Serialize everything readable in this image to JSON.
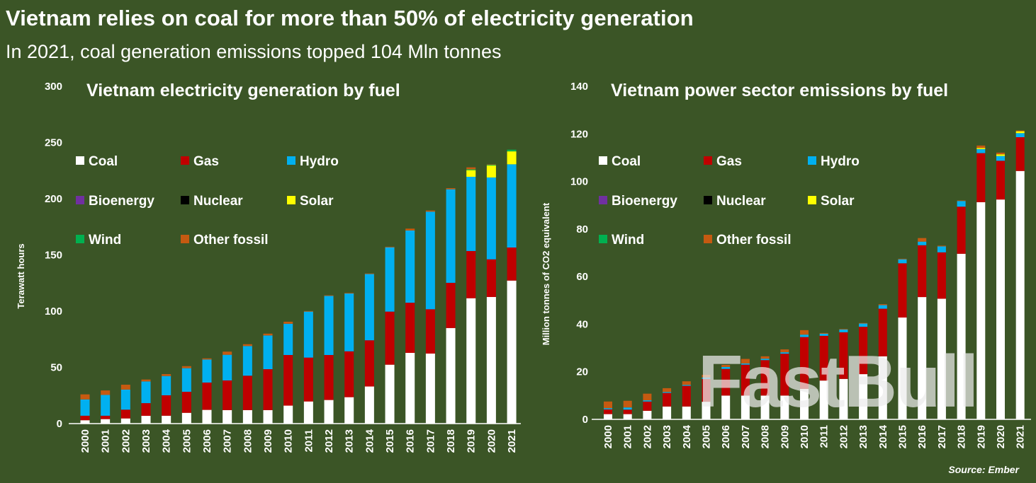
{
  "title": "Vietnam relies on coal for more than 50% of electricity generation",
  "subtitle": "In 2021, coal generation emissions topped 104 Mln tonnes",
  "source": "Source: Ember",
  "watermark": "FastBull",
  "colors": {
    "background": "#3b5526",
    "Coal": "#ffffff",
    "Gas": "#c00000",
    "Hydro": "#00b0f0",
    "Bioenergy": "#7030a0",
    "Nuclear": "#000000",
    "Solar": "#ffff00",
    "Wind": "#00b050",
    "Other fossil": "#c55a11"
  },
  "chart_data": [
    {
      "type": "bar",
      "stacked": true,
      "title": "Vietnam electricity generation by fuel",
      "xlabel": "",
      "ylabel": "Terawatt hours",
      "ylim": [
        0,
        300
      ],
      "yticks": [
        "0",
        "50",
        "100",
        "150",
        "200",
        "250",
        "300"
      ],
      "grid": false,
      "legend_placement": "top-left",
      "legend": [
        "Coal",
        "Gas",
        "Hydro",
        "Bioenergy",
        "Nuclear",
        "Solar",
        "Wind",
        "Other fossil"
      ],
      "categories": [
        "2000",
        "2001",
        "2002",
        "2003",
        "2004",
        "2005",
        "2006",
        "2007",
        "2008",
        "2009",
        "2010",
        "2011",
        "2012",
        "2013",
        "2014",
        "2015",
        "2016",
        "2017",
        "2018",
        "2019",
        "2020",
        "2021"
      ],
      "series": [
        {
          "name": "Coal",
          "values": [
            3,
            4,
            4.6,
            6.9,
            7,
            9.6,
            12.2,
            12,
            12,
            12,
            16,
            19.7,
            21,
            23.5,
            33,
            52.4,
            62.9,
            62.3,
            85,
            111.5,
            112.6,
            127.2
          ]
        },
        {
          "name": "Gas",
          "values": [
            4,
            3,
            7.8,
            11.3,
            18.2,
            18.7,
            24.3,
            26.4,
            30.6,
            36.4,
            45,
            39,
            40,
            40.8,
            41.1,
            47.2,
            44.6,
            39.4,
            40.2,
            42,
            33.5,
            29.4
          ]
        },
        {
          "name": "Hydro",
          "values": [
            14.5,
            18.5,
            17.8,
            19.3,
            17.1,
            21,
            20.5,
            22.8,
            26.4,
            30,
            27.8,
            40.9,
            52.6,
            51.4,
            58.9,
            57.2,
            64.2,
            86.8,
            83.2,
            66,
            72.8,
            74
          ]
        },
        {
          "name": "Bioenergy",
          "values": [
            0,
            0,
            0,
            0,
            0,
            0,
            0,
            0,
            0,
            0,
            0,
            0,
            0,
            0,
            0,
            0,
            0,
            0,
            0,
            0,
            0,
            0
          ]
        },
        {
          "name": "Nuclear",
          "values": [
            0,
            0,
            0,
            0,
            0,
            0,
            0,
            0,
            0,
            0,
            0,
            0,
            0,
            0,
            0,
            0,
            0,
            0,
            0,
            0,
            0,
            0
          ]
        },
        {
          "name": "Solar",
          "values": [
            0,
            0,
            0,
            0,
            0,
            0,
            0,
            0,
            0,
            0,
            0,
            0,
            0,
            0,
            0,
            0,
            0,
            0,
            0,
            5.9,
            10.7,
            11.5
          ]
        },
        {
          "name": "Wind",
          "values": [
            0,
            0,
            0,
            0,
            0,
            0,
            0,
            0,
            0,
            0,
            0,
            0,
            0,
            0,
            0,
            0,
            0,
            0,
            0,
            0.7,
            0.8,
            1.5
          ]
        },
        {
          "name": "Other fossil",
          "values": [
            4.5,
            4,
            4.4,
            1.7,
            1.7,
            1.8,
            1,
            2.8,
            1.6,
            1.6,
            1.8,
            0.5,
            0.5,
            0.5,
            0.5,
            0.5,
            1.7,
            1,
            1,
            1.8,
            0.4,
            0
          ]
        }
      ]
    },
    {
      "type": "bar",
      "stacked": true,
      "title": "Vietnam power sector emissions by fuel",
      "xlabel": "",
      "ylabel": "Million tonnes of CO2 equivalent",
      "ylim": [
        0,
        140
      ],
      "yticks": [
        "0",
        "20",
        "40",
        "60",
        "80",
        "100",
        "120",
        "140"
      ],
      "grid": false,
      "legend_placement": "top-left",
      "legend": [
        "Coal",
        "Gas",
        "Hydro",
        "Bioenergy",
        "Nuclear",
        "Solar",
        "Wind",
        "Other fossil"
      ],
      "categories": [
        "2000",
        "2001",
        "2002",
        "2003",
        "2004",
        "2005",
        "2006",
        "2007",
        "2008",
        "2009",
        "2010",
        "2011",
        "2012",
        "2013",
        "2014",
        "2015",
        "2016",
        "2017",
        "2018",
        "2019",
        "2020",
        "2021"
      ],
      "series": [
        {
          "name": "Coal",
          "values": [
            2.2,
            2.2,
            3.6,
            5.4,
            5.4,
            7.4,
            10,
            10,
            10,
            10,
            12.8,
            16.3,
            17,
            19,
            26.5,
            42.8,
            51.4,
            50.7,
            69.6,
            91.3,
            92.4,
            104.4
          ]
        },
        {
          "name": "Gas",
          "values": [
            2,
            1.9,
            3.9,
            5.7,
            8.7,
            9.6,
            11.2,
            13,
            14.9,
            17.6,
            21.8,
            18.8,
            19.6,
            19.9,
            20,
            22.8,
            21.8,
            19.5,
            19.8,
            20.6,
            16.3,
            14.2
          ]
        },
        {
          "name": "Hydro",
          "values": [
            0.5,
            0.9,
            0.5,
            0.4,
            0.4,
            0.6,
            0.8,
            0.5,
            0.6,
            0.6,
            1,
            0.9,
            1.2,
            1.4,
            1.5,
            1.7,
            1.5,
            2.5,
            2.4,
            1.7,
            2,
            1.7
          ]
        },
        {
          "name": "Bioenergy",
          "values": [
            0,
            0,
            0,
            0,
            0,
            0,
            0,
            0,
            0,
            0,
            0,
            0,
            0,
            0,
            0,
            0,
            0,
            0,
            0,
            0,
            0,
            0
          ]
        },
        {
          "name": "Nuclear",
          "values": [
            0,
            0,
            0,
            0,
            0,
            0,
            0,
            0,
            0,
            0,
            0,
            0,
            0,
            0,
            0,
            0,
            0,
            0,
            0,
            0,
            0,
            0
          ]
        },
        {
          "name": "Solar",
          "values": [
            0,
            0,
            0,
            0,
            0,
            0,
            0,
            0,
            0,
            0,
            0,
            0,
            0,
            0,
            0,
            0,
            0,
            0,
            0,
            0.5,
            0.7,
            0.8
          ]
        },
        {
          "name": "Wind",
          "values": [
            0,
            0,
            0,
            0,
            0,
            0,
            0,
            0,
            0,
            0,
            0,
            0,
            0,
            0,
            0,
            0,
            0,
            0,
            0,
            0,
            0,
            0
          ]
        },
        {
          "name": "Other fossil",
          "values": [
            2.8,
            2.8,
            2.8,
            1.6,
            1.5,
            1.1,
            0.9,
            1.9,
            1,
            1.2,
            1.9,
            0.3,
            0.2,
            0.2,
            0.4,
            0.2,
            1.5,
            0.3,
            0.2,
            1,
            0.7,
            0.3
          ]
        }
      ]
    }
  ]
}
